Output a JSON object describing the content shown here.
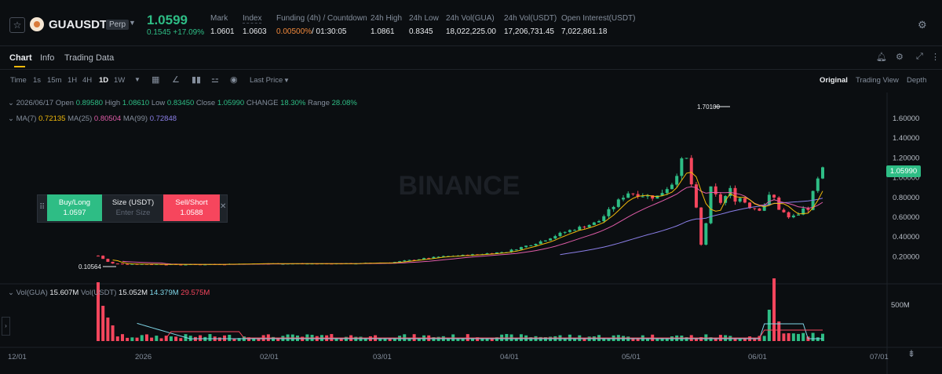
{
  "header": {
    "symbol": "GUAUSDT",
    "perp": "Perp",
    "last_price": "1.0599",
    "change": "0.1545 +17.09%",
    "stats": [
      {
        "label": "Mark",
        "value": "1.0601"
      },
      {
        "label": "Index",
        "value": "1.0603"
      },
      {
        "label": "Funding (4h) / Countdown",
        "value_a": "0.00500%",
        "value_b": "/ 01:30:05"
      },
      {
        "label": "24h High",
        "value": "1.0861"
      },
      {
        "label": "24h Low",
        "value": "0.8345"
      },
      {
        "label": "24h Vol(GUA)",
        "value": "18,022,225.00"
      },
      {
        "label": "24h Vol(USDT)",
        "value": "17,206,731.45"
      },
      {
        "label": "Open Interest(USDT)",
        "value": "7,022,861.18"
      }
    ]
  },
  "tabs": [
    "Chart",
    "Info",
    "Trading Data"
  ],
  "toolbar": {
    "intervals": [
      "Time",
      "1s",
      "15m",
      "1H",
      "4H",
      "1D",
      "1W"
    ],
    "active": "1D",
    "price_type": "Last Price",
    "views": [
      "Original",
      "Trading View",
      "Depth"
    ]
  },
  "ohlc": {
    "date": "2026/06/17",
    "open_label": "Open",
    "open": "0.89580",
    "high_label": "High",
    "high": "1.08610",
    "low_label": "Low",
    "low": "0.83450",
    "close_label": "Close",
    "close": "1.05990",
    "change_label": "CHANGE",
    "change": "18.30%",
    "range_label": "Range",
    "range": "28.08%"
  },
  "ma": {
    "ma7_label": "MA(7)",
    "ma7": "0.72135",
    "ma25_label": "MA(25)",
    "ma25": "0.80504",
    "ma99_label": "MA(99)",
    "ma99": "0.72848"
  },
  "order": {
    "buy_label": "Buy/Long",
    "buy_price": "1.0597",
    "size_label": "Size (USDT)",
    "size_placeholder": "Enter Size",
    "sell_label": "Sell/Short",
    "sell_price": "1.0588"
  },
  "vol": {
    "gua_label": "Vol(GUA)",
    "gua": "15.607M",
    "usdt_label": "Vol(USDT)",
    "usdt": "15.052M",
    "ma_a": "14.379M",
    "ma_b": "29.575M"
  },
  "price_tag": "1.05990",
  "high_marker": "1.70100",
  "low_marker": "0.10564",
  "watermark": "BINANCE",
  "colors": {
    "up": "#2ebd85",
    "down": "#f6465d",
    "accent": "#f0b90b",
    "ma7": "#f0b90b",
    "ma25": "#e05ca8",
    "ma99": "#8b7fe8"
  },
  "chart_data": {
    "type": "candlestick",
    "y_ticks": [
      "1.60000",
      "1.40000",
      "1.20000",
      "1.00000",
      "0.80000",
      "0.60000",
      "0.40000",
      "0.20000"
    ],
    "x_ticks": [
      "12/01",
      "2026",
      "02/01",
      "03/01",
      "04/01",
      "05/01",
      "06/01",
      "07/01"
    ],
    "vol_tick": "500M",
    "ylim": [
      0.1,
      1.75
    ]
  }
}
